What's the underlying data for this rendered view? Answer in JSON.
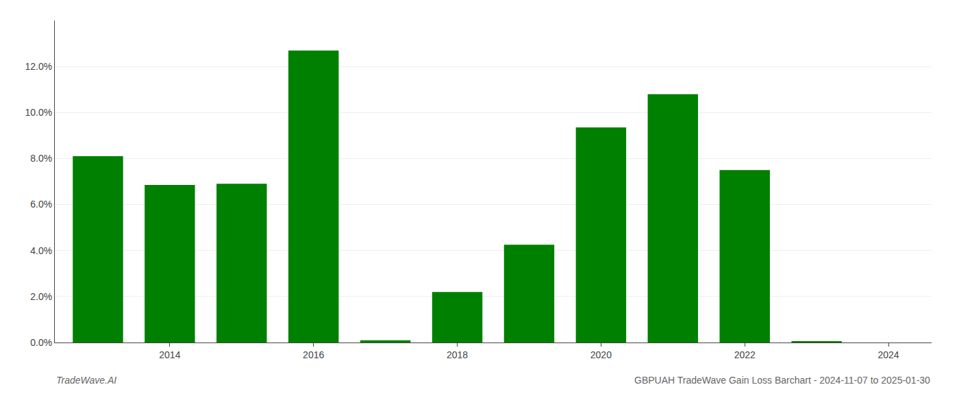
{
  "chart_data": {
    "type": "bar",
    "title": "GBPUAH TradeWave Gain Loss Barchart - 2024-11-07 to 2025-01-30",
    "annotations": [
      "TradeWave.AI"
    ],
    "x": [
      2013,
      2014,
      2015,
      2016,
      2017,
      2018,
      2019,
      2020,
      2021,
      2022,
      2023
    ],
    "values": [
      0.081,
      0.0685,
      0.069,
      0.127,
      0.001,
      0.022,
      0.0425,
      0.0935,
      0.108,
      0.075,
      0.0005
    ],
    "color": "#008000",
    "xlim": [
      2012.4,
      2024.6
    ],
    "xticks": [
      2014,
      2016,
      2018,
      2020,
      2022,
      2024
    ],
    "ylim": [
      0,
      0.14
    ],
    "yticks": [
      {
        "value": 0.0,
        "label": "0.0%"
      },
      {
        "value": 0.02,
        "label": "2.0%"
      },
      {
        "value": 0.04,
        "label": "4.0%"
      },
      {
        "value": 0.06,
        "label": "6.0%"
      },
      {
        "value": 0.08,
        "label": "8.0%"
      },
      {
        "value": 0.1,
        "label": "10.0%"
      },
      {
        "value": 0.12,
        "label": "12.0%"
      }
    ],
    "grid": true
  }
}
